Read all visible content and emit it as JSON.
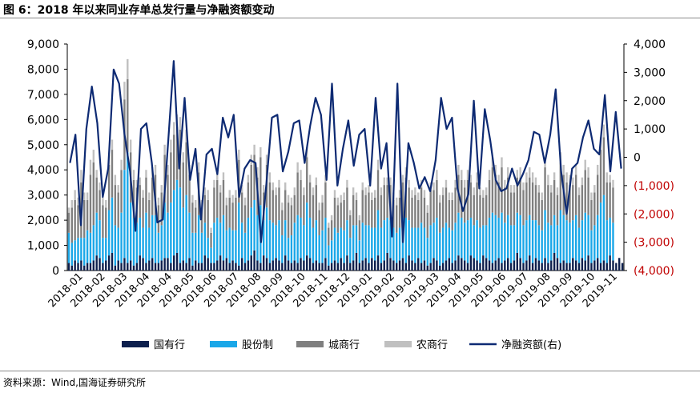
{
  "figure": {
    "title": "图 6：2018 年以来同业存单总发行量与净融资额变动",
    "source": "资料来源：Wind,国海证券研究所"
  },
  "chart_data": {
    "type": "bar",
    "stacked": true,
    "x_tick_labels": [
      "2018-01",
      "2018-02",
      "2018-03",
      "2018-04",
      "2018-04",
      "2018-05",
      "2018-06",
      "2018-07",
      "2018-08",
      "2018-09",
      "2018-10",
      "2018-11",
      "2018-12",
      "2019-01",
      "2019-02",
      "2019-03",
      "2019-03",
      "2019-04",
      "2019-05",
      "2019-06",
      "2019-07",
      "2019-08",
      "2019-09",
      "2019-10",
      "2019-11"
    ],
    "left_axis": {
      "ylim": [
        0,
        9000
      ],
      "ticks": [
        "0",
        "1,000",
        "2,000",
        "3,000",
        "4,000",
        "5,000",
        "6,000",
        "7,000",
        "8,000",
        "9,000"
      ]
    },
    "right_axis": {
      "ylim": [
        -4000,
        4000
      ],
      "ticks": [
        "(4,000)",
        "(3,000)",
        "(2,000)",
        "(1,000)",
        "0",
        "1,000",
        "2,000",
        "3,000",
        "4,000"
      ],
      "negative_color": "#c00000"
    },
    "colors": {
      "国有行": "#0d1f4d",
      "股份制": "#1aa7e8",
      "城商行": "#7f7f7f",
      "农商行": "#c0c0c0",
      "净融资额(右)": "#0d2a73"
    },
    "series": [
      {
        "name": "国有行",
        "axis": "left",
        "values": [
          300,
          200,
          400,
          300,
          400,
          200,
          300,
          300,
          400,
          600,
          500,
          300,
          400,
          600,
          700,
          200,
          400,
          300,
          500,
          300,
          400,
          200,
          300,
          600,
          500,
          300,
          400,
          500,
          300,
          300,
          400,
          500,
          500,
          300,
          600,
          700,
          300,
          400,
          300,
          500,
          200,
          400,
          300,
          300,
          600,
          500,
          300,
          300,
          400,
          600,
          400,
          500,
          300,
          400,
          300,
          200,
          500,
          300,
          400,
          600,
          800,
          400,
          300,
          600,
          500,
          300,
          400,
          500,
          400,
          300,
          600,
          400,
          300,
          400,
          300,
          500,
          400,
          600,
          500,
          300,
          400,
          300,
          300,
          500,
          200,
          300,
          400,
          300,
          500,
          300,
          600,
          300,
          400,
          700,
          300,
          400,
          500,
          300,
          500,
          400,
          600,
          300,
          400,
          700,
          500,
          400,
          300,
          400,
          500,
          300,
          600,
          400,
          300,
          500,
          300,
          400,
          200,
          300,
          500,
          400,
          200,
          300,
          400,
          500,
          300,
          400,
          600,
          500,
          400,
          300,
          600,
          500,
          400,
          300,
          600,
          500,
          400,
          300,
          400,
          500,
          300,
          400,
          500,
          300,
          400,
          700,
          500,
          300,
          400,
          600,
          300,
          500,
          400,
          300,
          500,
          300,
          400,
          700,
          500,
          300,
          400,
          300,
          300,
          500,
          400,
          300,
          500,
          400,
          600,
          300,
          400,
          500,
          300,
          400,
          300,
          600,
          400,
          300,
          500,
          300
        ]
      },
      {
        "name": "股份制",
        "axis": "left",
        "values": [
          1200,
          900,
          800,
          1000,
          900,
          1100,
          1300,
          1200,
          1400,
          1700,
          1500,
          1000,
          900,
          1800,
          2200,
          1600,
          1300,
          2000,
          3500,
          4400,
          2300,
          1900,
          1600,
          1500,
          1200,
          2000,
          1300,
          1700,
          1900,
          1200,
          1400,
          2200,
          1800,
          2400,
          2600,
          2900,
          3000,
          2100,
          2700,
          1800,
          1300,
          1100,
          1900,
          1200,
          1300,
          800,
          600,
          1600,
          1700,
          1300,
          1800,
          1100,
          1400,
          1200,
          1300,
          2500,
          1400,
          1200,
          1700,
          1900,
          2000,
          1800,
          2300,
          1400,
          2000,
          1700,
          1500,
          1300,
          1600,
          1100,
          1400,
          900,
          1100,
          1500,
          1900,
          1600,
          1400,
          2100,
          1600,
          1400,
          1600,
          1100,
          1300,
          1600,
          800,
          900,
          1300,
          1200,
          1200,
          1300,
          1400,
          1000,
          1400,
          1100,
          900,
          1500,
          1300,
          1500,
          1200,
          1300,
          1800,
          1400,
          1600,
          1400,
          1500,
          1300,
          1200,
          1300,
          1600,
          1800,
          1400,
          1300,
          1400,
          1200,
          1600,
          1300,
          1100,
          1500,
          1400,
          1700,
          1300,
          1400,
          1500,
          1200,
          1300,
          1500,
          1700,
          1600,
          1500,
          1700,
          1500,
          1300,
          1600,
          1400,
          1200,
          1300,
          1700,
          2000,
          1800,
          1600,
          2000,
          1500,
          1700,
          1500,
          1400,
          1600,
          1700,
          1500,
          1600,
          1600,
          1700,
          1500,
          1400,
          1300,
          1900,
          1600,
          1400,
          1500,
          1300,
          2100,
          1800,
          1700,
          1600,
          1500,
          1800,
          1400,
          1500,
          1900,
          1600,
          1300,
          1400,
          1700,
          2400,
          2600,
          1700,
          1500,
          1500
        ]
      },
      {
        "name": "城商行",
        "axis": "left",
        "values": [
          800,
          1400,
          1600,
          1300,
          2200,
          1500,
          1200,
          2300,
          2500,
          1400,
          1200,
          1300,
          1200,
          1800,
          1900,
          1600,
          1400,
          1700,
          2800,
          2900,
          2000,
          1500,
          1400,
          1300,
          1200,
          1400,
          1100,
          1500,
          1600,
          1100,
          1300,
          1900,
          1500,
          2000,
          2200,
          2100,
          2300,
          1800,
          2100,
          1500,
          1200,
          1000,
          1700,
          1000,
          1100,
          1500,
          600,
          1400,
          1500,
          1200,
          1400,
          1000,
          1200,
          1100,
          1300,
          1700,
          1200,
          1100,
          1400,
          1700,
          1800,
          1500,
          1900,
          1100,
          1700,
          1500,
          1300,
          1200,
          1300,
          1000,
          1200,
          1400,
          1200,
          1100,
          1700,
          1500,
          1200,
          1800,
          1400,
          1300,
          1400,
          1000,
          1100,
          1400,
          700,
          800,
          1200,
          1100,
          1000,
          1200,
          1300,
          900,
          1200,
          1000,
          800,
          1300,
          1200,
          1300,
          1100,
          1200,
          1600,
          1300,
          1400,
          1300,
          1400,
          1100,
          1100,
          1200,
          1400,
          1600,
          1300,
          1200,
          1300,
          1100,
          1400,
          1200,
          1000,
          1400,
          1300,
          1500,
          1200,
          1300,
          1400,
          1100,
          1200,
          1400,
          1500,
          1500,
          1400,
          1600,
          1400,
          1200,
          1500,
          1300,
          1100,
          1200,
          1500,
          1800,
          1600,
          1400,
          1800,
          1400,
          1500,
          1300,
          1300,
          1400,
          1500,
          1400,
          1500,
          1500,
          1500,
          1400,
          1300,
          1200,
          1700,
          1500,
          1300,
          1400,
          1200,
          1900,
          1600,
          1500,
          1500,
          1400,
          1600,
          1300,
          1400,
          1700,
          1500,
          1200,
          1300,
          1600,
          2100,
          2300,
          1500,
          1400,
          1400
        ]
      },
      {
        "name": "农商行",
        "axis": "left",
        "values": [
          200,
          300,
          400,
          300,
          500,
          300,
          300,
          600,
          500,
          300,
          300,
          300,
          300,
          400,
          400,
          400,
          300,
          400,
          700,
          800,
          500,
          400,
          300,
          300,
          300,
          300,
          300,
          400,
          400,
          300,
          300,
          400,
          400,
          500,
          500,
          500,
          500,
          400,
          500,
          400,
          300,
          300,
          400,
          300,
          300,
          400,
          200,
          300,
          400,
          300,
          300,
          300,
          300,
          300,
          300,
          400,
          300,
          300,
          300,
          400,
          400,
          400,
          400,
          300,
          400,
          400,
          300,
          300,
          300,
          300,
          300,
          300,
          300,
          300,
          400,
          400,
          300,
          400,
          300,
          300,
          300,
          300,
          300,
          300,
          200,
          200,
          300,
          300,
          300,
          300,
          300,
          200,
          300,
          300,
          200,
          300,
          300,
          300,
          300,
          300,
          400,
          300,
          300,
          300,
          300,
          300,
          300,
          300,
          300,
          400,
          300,
          300,
          300,
          300,
          300,
          300,
          300,
          300,
          300,
          400,
          300,
          300,
          300,
          300,
          300,
          300,
          400,
          400,
          300,
          400,
          300,
          300,
          400,
          300,
          300,
          300,
          400,
          400,
          400,
          300,
          400,
          300,
          400,
          300,
          300,
          300,
          400,
          300,
          400,
          400,
          400,
          300,
          300,
          300,
          400,
          400,
          300,
          300,
          300,
          400,
          400,
          400,
          400,
          300,
          400,
          300,
          300,
          400,
          400,
          300,
          300,
          400,
          500,
          500,
          400,
          300,
          300
        ]
      },
      {
        "name": "净融资额(右)",
        "axis": "right",
        "type": "line",
        "values": [
          -200,
          800,
          -2400,
          1000,
          2500,
          1200,
          -1400,
          -400,
          3100,
          2600,
          800,
          -500,
          -2600,
          1000,
          1200,
          -200,
          -2300,
          -2200,
          600,
          3400,
          -400,
          2100,
          -800,
          300,
          -2200,
          100,
          300,
          -600,
          1400,
          700,
          1500,
          -1400,
          -400,
          -100,
          -200,
          -3000,
          -900,
          1400,
          1500,
          -500,
          200,
          1200,
          1300,
          -200,
          1100,
          2100,
          1500,
          -800,
          2600,
          -1000,
          300,
          1300,
          -300,
          800,
          1000,
          -1000,
          2100,
          -400,
          500,
          -2800,
          2600,
          -3000,
          500,
          -200,
          -1100,
          -700,
          -1200,
          -100,
          2100,
          1000,
          1400,
          -1100,
          -1900,
          -1300,
          2000,
          -1100,
          1700,
          600,
          -800,
          -1200,
          -1100,
          -400,
          -1000,
          -600,
          -100,
          900,
          800,
          -200,
          800,
          2400,
          -500,
          -2000,
          -400,
          -200,
          700,
          1300,
          300,
          100,
          2200,
          -500,
          1600,
          -400
        ]
      }
    ],
    "legend": {
      "position": "bottom",
      "entries": [
        "国有行",
        "股份制",
        "城商行",
        "农商行",
        "净融资额(右)"
      ]
    },
    "grid": false
  }
}
